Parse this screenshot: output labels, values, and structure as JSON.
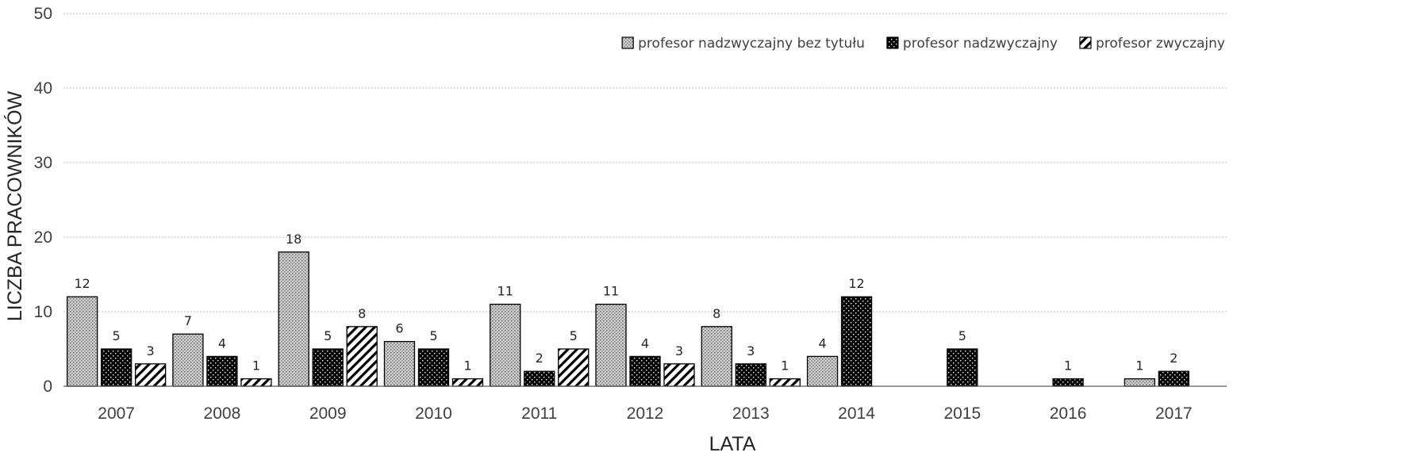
{
  "chart_data": {
    "type": "bar",
    "title": "",
    "xlabel": "LATA",
    "ylabel": "LICZBA PRACOWNIKÓW",
    "ylim": [
      0,
      50
    ],
    "yticks": [
      0,
      10,
      20,
      30,
      40,
      50
    ],
    "grid": true,
    "legend_position": "top-right",
    "categories": [
      "2007",
      "2008",
      "2009",
      "2010",
      "2011",
      "2012",
      "2013",
      "2014",
      "2015",
      "2016",
      "2017"
    ],
    "series": [
      {
        "name": "profesor nadzwyczajny bez tytułu",
        "pattern": "light-gray-dots",
        "values": [
          12,
          7,
          18,
          6,
          11,
          11,
          8,
          4,
          null,
          null,
          1
        ]
      },
      {
        "name": "profesor nadzwyczajny",
        "pattern": "black-with-white-dots",
        "values": [
          5,
          4,
          5,
          5,
          2,
          4,
          3,
          12,
          5,
          1,
          2
        ]
      },
      {
        "name": "profesor zwyczajny",
        "pattern": "diagonal-stripes",
        "values": [
          3,
          1,
          8,
          1,
          5,
          3,
          1,
          null,
          null,
          null,
          null
        ]
      }
    ]
  }
}
